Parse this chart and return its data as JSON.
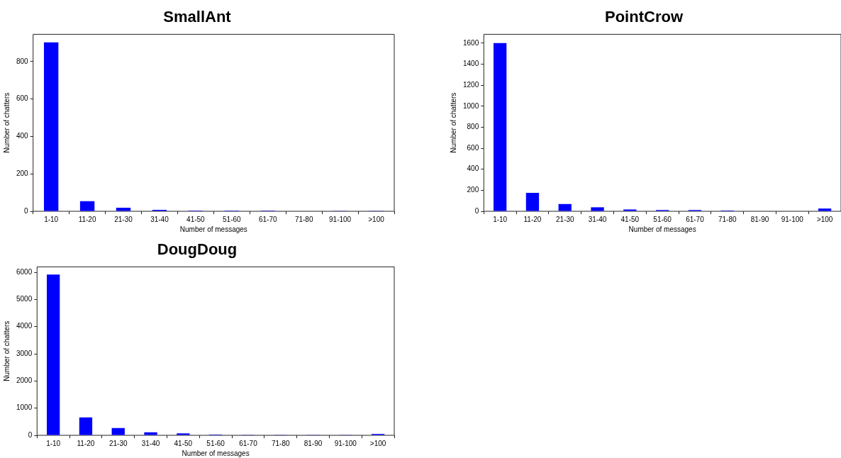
{
  "chart_data": [
    {
      "type": "bar",
      "title": "SmallAnt",
      "xlabel": "Number of messages",
      "ylabel": "Number of chatters",
      "categories": [
        "1-10",
        "11-20",
        "21-30",
        "31-40",
        "41-50",
        "51-60",
        "61-70",
        "71-80",
        "91-100",
        ">100"
      ],
      "values": [
        903,
        54,
        19,
        8,
        4,
        4,
        4,
        0,
        3,
        3
      ],
      "color": "#0000ff",
      "ylim": [
        0,
        946
      ],
      "yticks": [
        0,
        200,
        400,
        600,
        800
      ],
      "grid": false,
      "legend": false
    },
    {
      "type": "bar",
      "title": "PointCrow",
      "xlabel": "Number of messages",
      "ylabel": "Number of chatters",
      "categories": [
        "1-10",
        "11-20",
        "21-30",
        "31-40",
        "41-50",
        "51-60",
        "61-70",
        "71-80",
        "81-90",
        "91-100",
        ">100"
      ],
      "values": [
        1600,
        175,
        69,
        38,
        17,
        12,
        12,
        8,
        0,
        0,
        26
      ],
      "color": "#0000ff",
      "ylim": [
        0,
        1684
      ],
      "yticks": [
        0,
        200,
        400,
        600,
        800,
        1000,
        1200,
        1400,
        1600
      ],
      "grid": false,
      "legend": false
    },
    {
      "type": "bar",
      "title": "DougDoug",
      "xlabel": "Number of messages",
      "ylabel": "Number of chatters",
      "categories": [
        "1-10",
        "11-20",
        "21-30",
        "31-40",
        "41-50",
        "51-60",
        "61-70",
        "71-80",
        "81-90",
        "91-100",
        ">100"
      ],
      "values": [
        5920,
        660,
        270,
        110,
        70,
        30,
        20,
        20,
        20,
        20,
        50
      ],
      "color": "#0000ff",
      "ylim": [
        0,
        6200
      ],
      "yticks": [
        0,
        1000,
        2000,
        3000,
        4000,
        5000,
        6000
      ],
      "grid": false,
      "legend": false
    }
  ]
}
